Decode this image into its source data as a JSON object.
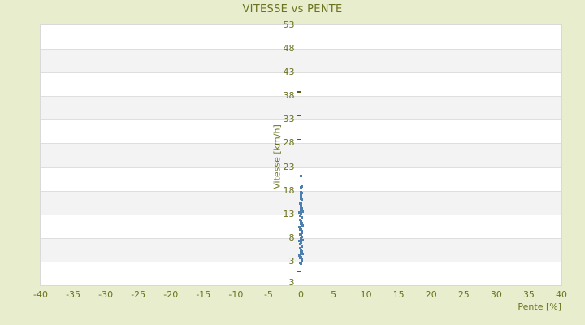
{
  "title": "VITESSE vs PENTE",
  "axes": {
    "x": {
      "title": "Pente [%]"
    },
    "y": {
      "title": "Vitesse [km/h]",
      "bottom_edge_label": "3"
    }
  },
  "colors": {
    "background": "#e8eecd",
    "text": "#6b721e",
    "axis": "#566014",
    "point": "#4c7fb0",
    "band_white": "#ffffff",
    "band_alt": "#f3f3f3",
    "gridline": "#dedede",
    "plot_border": "#d9d9d9"
  },
  "chart_data": {
    "type": "scatter",
    "title": "VITESSE vs PENTE",
    "xlabel": "Pente [%]",
    "ylabel": "Vitesse [km/h]",
    "xlim": [
      -40,
      40
    ],
    "ylim": [
      -2,
      53
    ],
    "x_ticks": [
      -40,
      -35,
      -30,
      -25,
      -20,
      -15,
      -10,
      -5,
      0,
      5,
      10,
      15,
      20,
      25,
      30,
      35,
      40
    ],
    "y_label_values": [
      53,
      48,
      43,
      38,
      33,
      28,
      23,
      18,
      13,
      8,
      3
    ],
    "y_bottom_edge_label": "3",
    "axis_tick_values": [
      39,
      34,
      29,
      24,
      1
    ],
    "grid": "horizontal-bands",
    "band_step": 5,
    "legend": "none",
    "series": [
      {
        "name": "vitesse",
        "color": "#4c7fb0",
        "points": [
          [
            0,
            2.5
          ],
          [
            -0.15,
            2.8
          ],
          [
            0.1,
            3.1
          ],
          [
            0.15,
            3.4
          ],
          [
            -0.1,
            3.7
          ],
          [
            0.05,
            4.0
          ],
          [
            -0.2,
            4.3
          ],
          [
            0.2,
            4.6
          ],
          [
            -0.05,
            4.9
          ],
          [
            0.1,
            5.2
          ],
          [
            0,
            5.5
          ],
          [
            -0.15,
            5.8
          ],
          [
            0.1,
            6.1
          ],
          [
            0.15,
            6.4
          ],
          [
            -0.1,
            6.7
          ],
          [
            0.05,
            7.0
          ],
          [
            -0.2,
            7.3
          ],
          [
            0.2,
            7.6
          ],
          [
            -0.05,
            7.9
          ],
          [
            0.1,
            8.2
          ],
          [
            0,
            8.5
          ],
          [
            -0.15,
            8.8
          ],
          [
            0.1,
            9.1
          ],
          [
            0.15,
            9.4
          ],
          [
            -0.1,
            9.7
          ],
          [
            0.05,
            10.0
          ],
          [
            -0.2,
            10.3
          ],
          [
            0.2,
            10.6
          ],
          [
            -0.05,
            10.9
          ],
          [
            0.1,
            11.2
          ],
          [
            0,
            11.5
          ],
          [
            -0.15,
            11.8
          ],
          [
            0.1,
            12.1
          ],
          [
            0.15,
            12.4
          ],
          [
            -0.1,
            12.7
          ],
          [
            0.05,
            13.0
          ],
          [
            -0.2,
            13.3
          ],
          [
            0.2,
            13.6
          ],
          [
            -0.05,
            13.9
          ],
          [
            0.1,
            14.2
          ],
          [
            0,
            14.5
          ],
          [
            0.05,
            14.8
          ],
          [
            0,
            15.0
          ],
          [
            -0.1,
            15.2
          ],
          [
            0.05,
            15.45
          ],
          [
            0.1,
            16.1
          ],
          [
            0,
            16.35
          ],
          [
            -0.05,
            16.6
          ],
          [
            0,
            17.25
          ],
          [
            0.1,
            17.5
          ],
          [
            0.05,
            17.7
          ],
          [
            0,
            18.65
          ],
          [
            0.1,
            18.85
          ],
          [
            0,
            21.2
          ]
        ]
      }
    ]
  }
}
